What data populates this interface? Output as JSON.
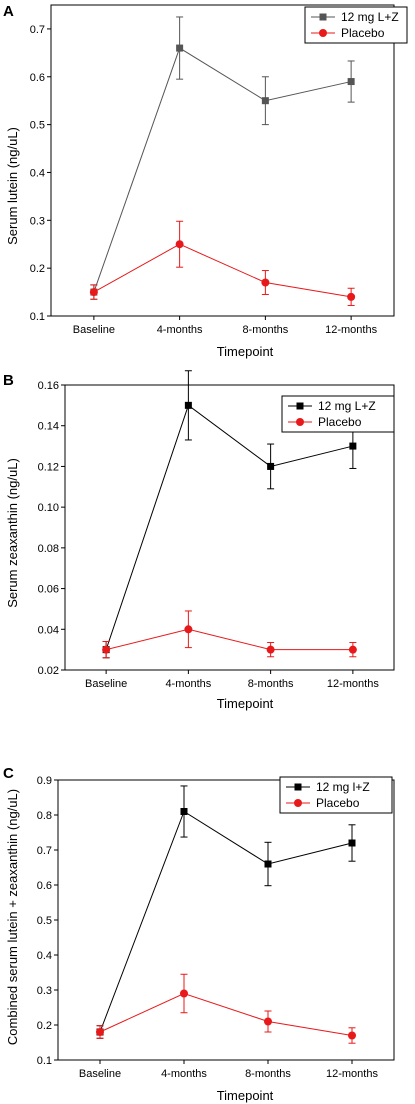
{
  "chart_data": [
    {
      "type": "line",
      "panel_label": "A",
      "xlabel": "Timepoint",
      "ylabel": "Serum lutein (ng/uL)",
      "categories": [
        "Baseline",
        "4-months",
        "8-months",
        "12-months"
      ],
      "ylim": [
        0.1,
        0.75
      ],
      "yticks": [
        0.1,
        0.2,
        0.3,
        0.4,
        0.5,
        0.6,
        0.7
      ],
      "tick_decimals": 1,
      "legend_position": "top-right",
      "series": [
        {
          "name": "12 mg L+Z",
          "color": "#555555",
          "marker": "square",
          "values": [
            0.15,
            0.66,
            0.55,
            0.59
          ],
          "errors": [
            0.015,
            0.065,
            0.05,
            0.043
          ]
        },
        {
          "name": "Placebo",
          "color": "#e8191a",
          "marker": "circle",
          "values": [
            0.15,
            0.25,
            0.17,
            0.14
          ],
          "errors": [
            0.015,
            0.048,
            0.025,
            0.018
          ]
        }
      ]
    },
    {
      "type": "line",
      "panel_label": "B",
      "xlabel": "Timepoint",
      "ylabel": "Serum zeaxanthin (ng/uL)",
      "categories": [
        "Baseline",
        "4-months",
        "8-months",
        "12-months"
      ],
      "ylim": [
        0.02,
        0.16
      ],
      "yticks": [
        0.02,
        0.04,
        0.06,
        0.08,
        0.1,
        0.12,
        0.14,
        0.16
      ],
      "tick_decimals": 2,
      "legend_position": "top-right",
      "series": [
        {
          "name": "12 mg L+Z",
          "color": "#000000",
          "marker": "square",
          "values": [
            0.03,
            0.15,
            0.12,
            0.13
          ],
          "errors": [
            0.004,
            0.017,
            0.011,
            0.011
          ]
        },
        {
          "name": "Placebo",
          "color": "#e8191a",
          "marker": "circle",
          "values": [
            0.03,
            0.04,
            0.03,
            0.03
          ],
          "errors": [
            0.004,
            0.009,
            0.0035,
            0.0035
          ]
        }
      ]
    },
    {
      "type": "line",
      "panel_label": "C",
      "xlabel": "Timepoint",
      "ylabel": "Combined serum lutein + zeaxanthin (ng/uL)",
      "categories": [
        "Baseline",
        "4-months",
        "8-months",
        "12-months"
      ],
      "ylim": [
        0.1,
        0.9
      ],
      "yticks": [
        0.1,
        0.2,
        0.3,
        0.4,
        0.5,
        0.6,
        0.7,
        0.8,
        0.9
      ],
      "tick_decimals": 1,
      "legend_position": "top-right",
      "series": [
        {
          "name": "12 mg l+Z",
          "color": "#000000",
          "marker": "square",
          "values": [
            0.18,
            0.81,
            0.66,
            0.72
          ],
          "errors": [
            0.018,
            0.073,
            0.062,
            0.052
          ]
        },
        {
          "name": "Placebo",
          "color": "#e8191a",
          "marker": "circle",
          "values": [
            0.18,
            0.29,
            0.21,
            0.17
          ],
          "errors": [
            0.018,
            0.055,
            0.03,
            0.022
          ]
        }
      ]
    }
  ]
}
